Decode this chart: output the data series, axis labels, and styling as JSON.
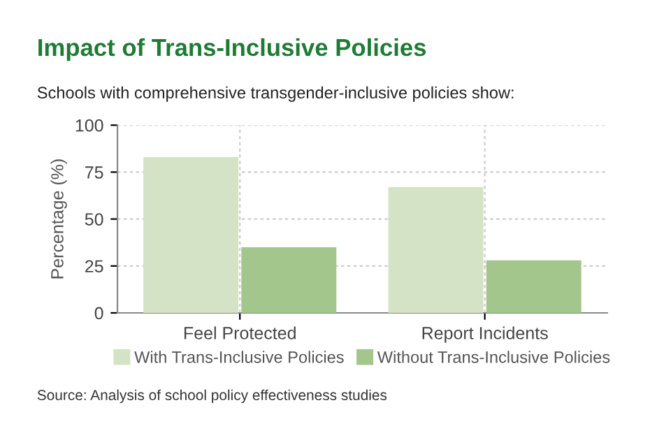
{
  "chart_data": {
    "type": "bar",
    "title": "Impact of Trans-Inclusive Policies",
    "subtitle": "Schools with comprehensive transgender-inclusive policies show:",
    "ylabel": "Percentage (%)",
    "categories": [
      "Feel Protected",
      "Report Incidents"
    ],
    "series": [
      {
        "name": "With Trans-Inclusive Policies",
        "color": "#d4e2c6",
        "values": [
          83,
          67
        ]
      },
      {
        "name": "Without Trans-Inclusive Policies",
        "color": "#a3c68c",
        "values": [
          35,
          28
        ]
      }
    ],
    "ylim": [
      0,
      100
    ],
    "yticks": [
      0,
      25,
      50,
      75,
      100
    ],
    "grid": true,
    "legend": "bottom",
    "annotations": [
      "Source: Analysis of school policy effectiveness studies"
    ]
  }
}
